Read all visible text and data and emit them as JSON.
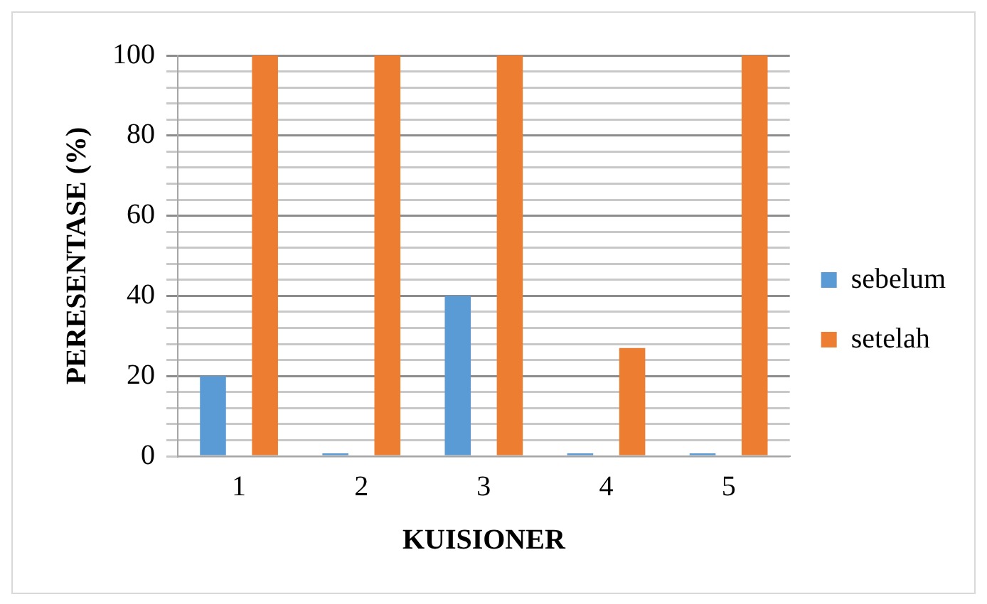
{
  "chart_data": {
    "type": "bar",
    "xlabel": "KUISIONER",
    "ylabel": "PERESENTASE (%)",
    "categories": [
      "1",
      "2",
      "3",
      "4",
      "5"
    ],
    "series": [
      {
        "name": "sebelum",
        "color": "#5b9bd5",
        "values": [
          20,
          0,
          40,
          0,
          0
        ]
      },
      {
        "name": "setelah",
        "color": "#ed7d31",
        "values": [
          100,
          100,
          100,
          27,
          100
        ]
      }
    ],
    "ylim": [
      0,
      100
    ],
    "yticks": [
      0,
      {
        "value": 4,
        "label": null
      },
      {
        "value": 8,
        "label": null
      },
      {
        "value": 12,
        "label": null
      },
      {
        "value": 16,
        "label": null
      },
      20,
      {
        "value": 24,
        "label": null
      },
      {
        "value": 28,
        "label": null
      },
      {
        "value": 32,
        "label": null
      },
      {
        "value": 36,
        "label": null
      },
      40,
      {
        "value": 44,
        "label": null
      },
      {
        "value": 48,
        "label": null
      },
      {
        "value": 52,
        "label": null
      },
      {
        "value": 56,
        "label": null
      },
      60,
      {
        "value": 64,
        "label": null
      },
      {
        "value": 68,
        "label": null
      },
      {
        "value": 72,
        "label": null
      },
      {
        "value": 76,
        "label": null
      },
      80,
      {
        "value": 84,
        "label": null
      },
      {
        "value": 88,
        "label": null
      },
      {
        "value": 92,
        "label": null
      },
      {
        "value": 96,
        "label": null
      },
      100
    ],
    "grid": "y",
    "legend": "right"
  }
}
